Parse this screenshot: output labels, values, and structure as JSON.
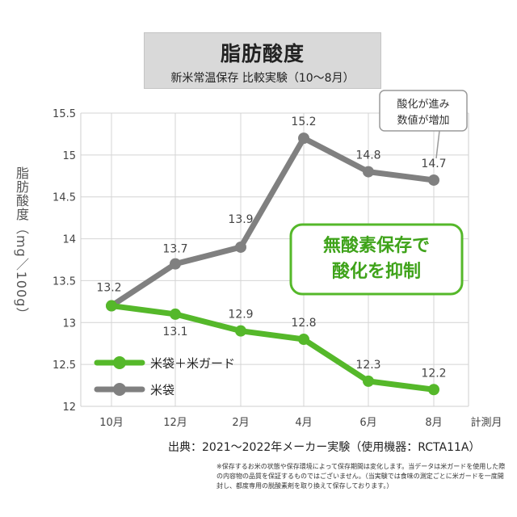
{
  "header": {
    "title": "脂肪酸度",
    "subtitle": "新米常温保存 比較実験（10～8月）"
  },
  "yaxis_label": "脂肪酸度（mg／100g）",
  "source": "出典：2021～2022年メーカー実験（使用機器：RCTA11A）",
  "footnote": "※保存するお米の状態や保存環境によって保存期間は変化します。当データは米ガードを使用した際の内容物の品質を保証するものではございません。（当実験では食味の測定ごとに米ガードを一度開封し、都度専用の脱酸素剤を取り換えて保存しております。）",
  "callout_gray": "酸化が進み 数値が増加",
  "callout_green": "無酸素保存で 酸化を抑制",
  "chart_data": {
    "type": "line",
    "categories": [
      "10月",
      "12月",
      "2月",
      "4月",
      "6月",
      "8月"
    ],
    "x_axis_unit": "計測月",
    "y_ticks": [
      "12",
      "12.5",
      "13",
      "13.5",
      "14",
      "14.5",
      "15",
      "15.5"
    ],
    "ylim": [
      12,
      15.5
    ],
    "grid": true,
    "legend_position": "left-bottom",
    "series": [
      {
        "name": "米袋＋米ガード",
        "color": "#55b82a",
        "values": [
          13.2,
          13.1,
          12.9,
          12.8,
          12.3,
          12.2
        ],
        "labels": [
          "13.2",
          "13.1",
          "12.9",
          "12.8",
          "12.3",
          "12.2"
        ]
      },
      {
        "name": "米袋",
        "color": "#808080",
        "values": [
          13.2,
          13.7,
          13.9,
          15.2,
          14.8,
          14.7
        ],
        "labels": [
          "13.2",
          "13.7",
          "13.9",
          "15.2",
          "14.8",
          "14.7"
        ]
      }
    ]
  }
}
